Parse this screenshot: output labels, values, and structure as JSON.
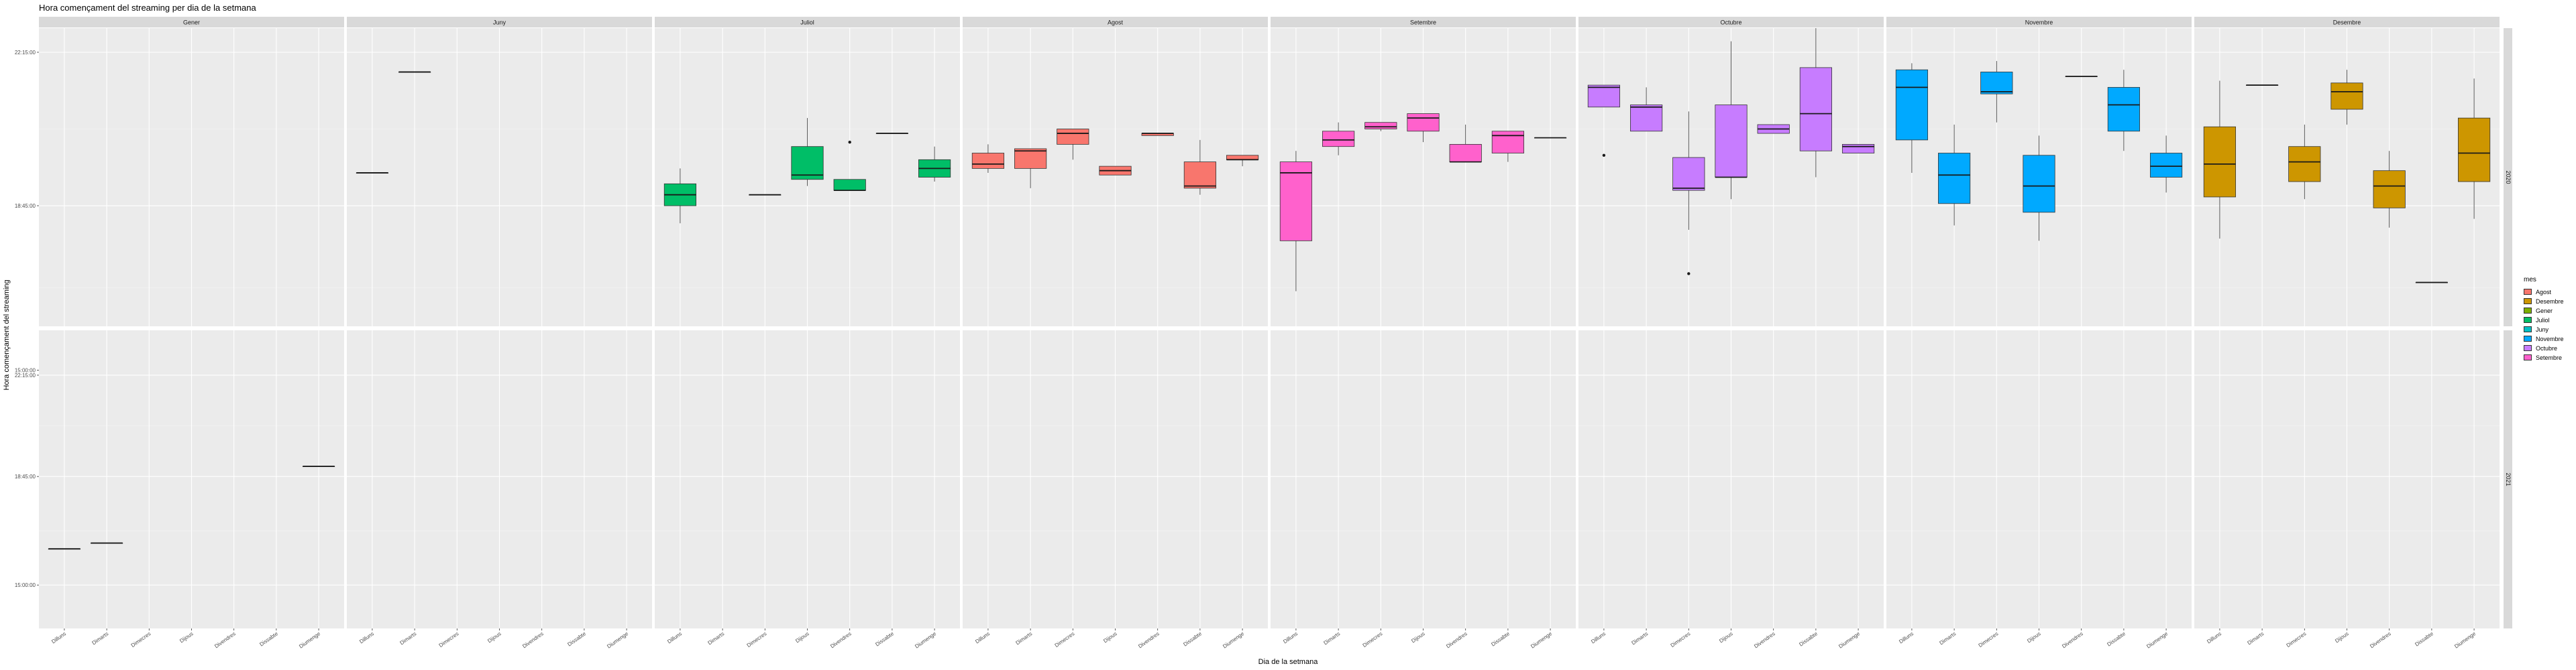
{
  "chart_data": {
    "type": "box",
    "title": "Hora començament del streaming per dia de la setmana",
    "xlabel": "Dia de la setmana",
    "ylabel": "Hora començament del streaming",
    "days": [
      "Dilluns",
      "Dimarts",
      "Dimecres",
      "Dijous",
      "Divendres",
      "Dissabte",
      "Diumenge"
    ],
    "months": [
      "Gener",
      "Juny",
      "Juliol",
      "Agost",
      "Setembre",
      "Octubre",
      "Novembre",
      "Desembre"
    ],
    "years": [
      "2020",
      "2021"
    ],
    "y_ticks": [
      "15:00:00",
      "18:45:00",
      "22:15:00"
    ],
    "y_tick_values_hours": [
      15.0,
      18.75,
      22.25
    ],
    "legend_title": "mes",
    "legend": [
      {
        "name": "Agost",
        "color": "#F8766D"
      },
      {
        "name": "Desembre",
        "color": "#CD9600"
      },
      {
        "name": "Gener",
        "color": "#7CAE00"
      },
      {
        "name": "Juliol",
        "color": "#00BE67"
      },
      {
        "name": "Juny",
        "color": "#00BFC4"
      },
      {
        "name": "Novembre",
        "color": "#00A9FF"
      },
      {
        "name": "Octubre",
        "color": "#C77CFF"
      },
      {
        "name": "Setembre",
        "color": "#FF61CC"
      }
    ],
    "rows": [
      {
        "year": "2020",
        "y_range_hours": [
          16.0,
          22.8
        ],
        "boxes": [
          {
            "month": "Juny",
            "day": "Dilluns",
            "stats": [
              19.5,
              19.5,
              19.5,
              19.5,
              19.5
            ]
          },
          {
            "month": "Juny",
            "day": "Dimarts",
            "stats": [
              21.8,
              21.8,
              21.8,
              21.8,
              21.8
            ]
          },
          {
            "month": "Juliol",
            "day": "Dilluns",
            "stats": [
              18.35,
              18.75,
              19.0,
              19.25,
              19.6
            ]
          },
          {
            "month": "Juliol",
            "day": "Dimecres",
            "stats": [
              19.0,
              19.0,
              19.0,
              19.0,
              19.0
            ]
          },
          {
            "month": "Juliol",
            "day": "Dijous",
            "stats": [
              19.2,
              19.35,
              19.45,
              20.1,
              20.75
            ],
            "outliers": []
          },
          {
            "month": "Juliol",
            "day": "Divendres",
            "stats": [
              19.1,
              19.1,
              19.1,
              19.35,
              19.35
            ],
            "outliers": [
              20.2
            ]
          },
          {
            "month": "Juliol",
            "day": "Dissabte",
            "stats": [
              20.4,
              20.4,
              20.4,
              20.4,
              20.4
            ]
          },
          {
            "month": "Juliol",
            "day": "Diumenge",
            "stats": [
              19.3,
              19.4,
              19.6,
              19.8,
              20.1
            ]
          },
          {
            "month": "Agost",
            "day": "Dilluns",
            "stats": [
              19.5,
              19.6,
              19.7,
              19.95,
              20.15
            ]
          },
          {
            "month": "Agost",
            "day": "Dimarts",
            "stats": [
              19.15,
              19.6,
              20.0,
              20.05,
              20.05
            ]
          },
          {
            "month": "Agost",
            "day": "Dimecres",
            "stats": [
              19.8,
              20.15,
              20.4,
              20.5,
              20.5
            ]
          },
          {
            "month": "Agost",
            "day": "Dijous",
            "stats": [
              19.45,
              19.45,
              19.55,
              19.65,
              19.65
            ]
          },
          {
            "month": "Agost",
            "day": "Divendres",
            "stats": [
              20.35,
              20.35,
              20.4,
              20.4,
              20.4
            ]
          },
          {
            "month": "Agost",
            "day": "Dissabte",
            "stats": [
              19.0,
              19.15,
              19.2,
              19.75,
              20.25
            ]
          },
          {
            "month": "Agost",
            "day": "Diumenge",
            "stats": [
              19.65,
              19.8,
              19.8,
              19.9,
              19.9
            ]
          },
          {
            "month": "Setembre",
            "day": "Dilluns",
            "stats": [
              16.8,
              17.95,
              19.5,
              19.75,
              20.0
            ]
          },
          {
            "month": "Setembre",
            "day": "Dimarts",
            "stats": [
              19.9,
              20.1,
              20.25,
              20.45,
              20.65
            ]
          },
          {
            "month": "Setembre",
            "day": "Dimecres",
            "stats": [
              20.45,
              20.5,
              20.55,
              20.65,
              20.65
            ]
          },
          {
            "month": "Setembre",
            "day": "Dijous",
            "stats": [
              20.2,
              20.45,
              20.75,
              20.85,
              20.85
            ]
          },
          {
            "month": "Setembre",
            "day": "Divendres",
            "stats": [
              19.75,
              19.75,
              19.75,
              20.15,
              20.6
            ]
          },
          {
            "month": "Setembre",
            "day": "Dissabte",
            "stats": [
              19.75,
              19.95,
              20.35,
              20.45,
              20.45
            ]
          },
          {
            "month": "Setembre",
            "day": "Diumenge",
            "stats": [
              20.3,
              20.3,
              20.3,
              20.3,
              20.3
            ]
          },
          {
            "month": "Octubre",
            "day": "Dilluns",
            "stats": [
              21.0,
              21.0,
              21.45,
              21.5,
              21.5
            ],
            "outliers": [
              19.9
            ]
          },
          {
            "month": "Octubre",
            "day": "Dimarts",
            "stats": [
              20.45,
              20.45,
              21.0,
              21.05,
              21.45
            ],
            "outliers": []
          },
          {
            "month": "Octubre",
            "day": "Dimecres",
            "stats": [
              18.2,
              19.1,
              19.15,
              19.85,
              20.9
            ],
            "outliers": [
              17.2
            ]
          },
          {
            "month": "Octubre",
            "day": "Dijous",
            "stats": [
              18.9,
              19.4,
              19.4,
              21.05,
              22.5
            ]
          },
          {
            "month": "Octubre",
            "day": "Divendres",
            "stats": [
              20.4,
              20.4,
              20.5,
              20.6,
              20.6
            ]
          },
          {
            "month": "Octubre",
            "day": "Dissabte",
            "stats": [
              19.4,
              20.0,
              20.85,
              21.9,
              22.8
            ]
          },
          {
            "month": "Octubre",
            "day": "Diumenge",
            "stats": [
              19.95,
              19.95,
              20.1,
              20.15,
              20.15
            ]
          },
          {
            "month": "Novembre",
            "day": "Dilluns",
            "stats": [
              19.5,
              20.25,
              21.45,
              21.85,
              22.0
            ]
          },
          {
            "month": "Novembre",
            "day": "Dimarts",
            "stats": [
              18.3,
              18.8,
              19.45,
              19.95,
              20.6
            ]
          },
          {
            "month": "Novembre",
            "day": "Dimecres",
            "stats": [
              20.65,
              21.3,
              21.35,
              21.8,
              22.05
            ]
          },
          {
            "month": "Novembre",
            "day": "Dijous",
            "stats": [
              17.95,
              18.6,
              19.2,
              19.9,
              20.35
            ]
          },
          {
            "month": "Novembre",
            "day": "Divendres",
            "stats": [
              21.7,
              21.7,
              21.7,
              21.7,
              21.7
            ]
          },
          {
            "month": "Novembre",
            "day": "Dissabte",
            "stats": [
              20.0,
              20.45,
              21.05,
              21.45,
              21.85
            ]
          },
          {
            "month": "Novembre",
            "day": "Diumenge",
            "stats": [
              19.05,
              19.4,
              19.65,
              19.95,
              20.35
            ]
          },
          {
            "month": "Desembre",
            "day": "Dilluns",
            "stats": [
              18.0,
              18.95,
              19.7,
              20.55,
              21.6
            ]
          },
          {
            "month": "Desembre",
            "day": "Dimarts",
            "stats": [
              21.5,
              21.5,
              21.5,
              21.5,
              21.5
            ]
          },
          {
            "month": "Desembre",
            "day": "Dimecres",
            "stats": [
              18.9,
              19.3,
              19.75,
              20.1,
              20.6
            ]
          },
          {
            "month": "Desembre",
            "day": "Dijous",
            "stats": [
              20.6,
              20.95,
              21.35,
              21.55,
              21.85
            ]
          },
          {
            "month": "Desembre",
            "day": "Divendres",
            "stats": [
              18.25,
              18.7,
              19.2,
              19.55,
              20.0
            ]
          },
          {
            "month": "Desembre",
            "day": "Dissabte",
            "stats": [
              17.0,
              17.0,
              17.0,
              17.0,
              17.0
            ]
          },
          {
            "month": "Desembre",
            "day": "Diumenge",
            "stats": [
              18.45,
              19.3,
              19.95,
              20.75,
              21.65
            ]
          }
        ]
      },
      {
        "year": "2021",
        "y_range_hours": [
          13.5,
          23.8
        ],
        "boxes": [
          {
            "month": "Gener",
            "day": "Dilluns",
            "stats": [
              16.25,
              16.25,
              16.25,
              16.25,
              16.25
            ]
          },
          {
            "month": "Gener",
            "day": "Dimarts",
            "stats": [
              16.45,
              16.45,
              16.45,
              16.45,
              16.45
            ]
          },
          {
            "month": "Gener",
            "day": "Diumenge",
            "stats": [
              19.1,
              19.1,
              19.1,
              19.1,
              19.1
            ]
          }
        ]
      }
    ]
  }
}
